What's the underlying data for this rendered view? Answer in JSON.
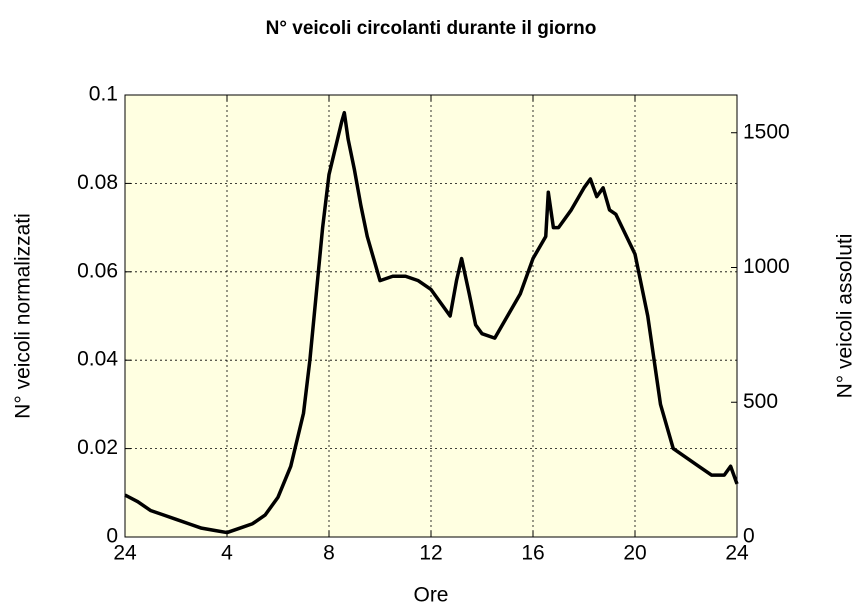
{
  "chart_data": {
    "type": "line",
    "title": "N° veicoli circolanti durante il giorno",
    "xlabel": "Ore",
    "ylabel": "N° veicoli normalizzati",
    "y2label": "N° veicoli assoluti",
    "xlim": [
      0,
      24
    ],
    "xticks": [
      {
        "value": 0,
        "label": "24"
      },
      4,
      8,
      12,
      16,
      20,
      24
    ],
    "ylim": [
      0,
      0.1
    ],
    "yticks": [
      0,
      0.02,
      0.04,
      0.06,
      0.08,
      0.1
    ],
    "y2lim": [
      0,
      1640
    ],
    "y2ticks": [
      0,
      500,
      1000,
      1500
    ],
    "grid": true,
    "background": "#ffffe1",
    "series": [
      {
        "color": "#000000",
        "x": [
          0,
          0.5,
          1,
          1.5,
          2,
          2.5,
          3,
          3.5,
          4,
          4.5,
          5,
          5.5,
          6,
          6.5,
          7,
          7.25,
          7.5,
          7.75,
          8,
          8.25,
          8.5,
          8.6,
          8.75,
          9,
          9.25,
          9.5,
          9.75,
          10,
          10.5,
          11,
          11.5,
          12,
          12.5,
          12.75,
          13,
          13.2,
          13.5,
          13.75,
          14,
          14.5,
          15,
          15.5,
          16,
          16.5,
          16.6,
          16.8,
          17,
          17.5,
          18,
          18.25,
          18.5,
          18.75,
          19,
          19.25,
          19.5,
          20,
          20.5,
          20.75,
          21,
          21.25,
          21.5,
          22,
          22.5,
          23,
          23.5,
          23.75,
          24
        ],
        "values": [
          0.0095,
          0.008,
          0.006,
          0.005,
          0.004,
          0.003,
          0.002,
          0.0015,
          0.001,
          0.002,
          0.003,
          0.005,
          0.009,
          0.016,
          0.028,
          0.04,
          0.055,
          0.07,
          0.082,
          0.088,
          0.094,
          0.096,
          0.09,
          0.083,
          0.075,
          0.068,
          0.063,
          0.058,
          0.059,
          0.059,
          0.058,
          0.056,
          0.052,
          0.05,
          0.058,
          0.063,
          0.055,
          0.048,
          0.046,
          0.045,
          0.05,
          0.055,
          0.063,
          0.068,
          0.078,
          0.07,
          0.07,
          0.074,
          0.079,
          0.081,
          0.077,
          0.079,
          0.074,
          0.073,
          0.07,
          0.064,
          0.05,
          0.04,
          0.03,
          0.025,
          0.02,
          0.018,
          0.016,
          0.014,
          0.014,
          0.016,
          0.012
        ]
      }
    ]
  }
}
